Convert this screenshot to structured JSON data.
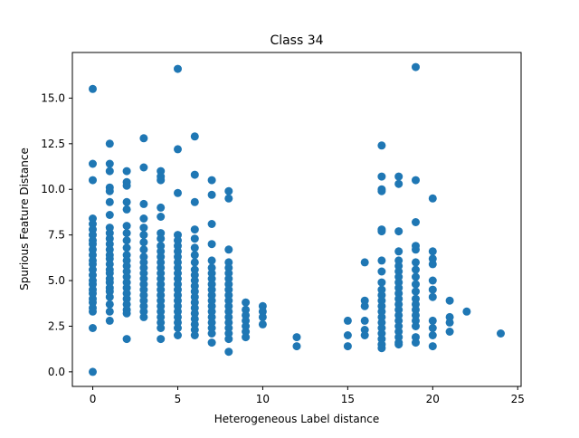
{
  "chart_data": {
    "type": "scatter",
    "title": "Class 34",
    "xlabel": "Heterogeneous Label distance",
    "ylabel": "Spurious Feature Distance",
    "xlim": [
      -1.2,
      25.2
    ],
    "ylim": [
      -0.8,
      17.5
    ],
    "xticks": [
      0,
      5,
      10,
      15,
      20,
      25
    ],
    "xtick_labels": [
      "0",
      "5",
      "10",
      "15",
      "20",
      "25"
    ],
    "yticks": [
      0,
      2.5,
      5,
      7.5,
      10,
      12.5,
      15
    ],
    "ytick_labels": [
      "0.0",
      "2.5",
      "5.0",
      "7.5",
      "10.0",
      "12.5",
      "15.0"
    ],
    "grid": false,
    "marker_color": "#1f77b4",
    "series": [
      {
        "points": [
          [
            0,
            15.5
          ],
          [
            0,
            11.4
          ],
          [
            0,
            10.5
          ],
          [
            0,
            8.4
          ],
          [
            0,
            8.1
          ],
          [
            0,
            7.8
          ],
          [
            0,
            7.5
          ],
          [
            0,
            7.2
          ],
          [
            0,
            7.0
          ],
          [
            0,
            6.7
          ],
          [
            0,
            6.4
          ],
          [
            0,
            6.1
          ],
          [
            0,
            5.9
          ],
          [
            0,
            5.6
          ],
          [
            0,
            5.3
          ],
          [
            0,
            5.0
          ],
          [
            0,
            4.8
          ],
          [
            0,
            4.5
          ],
          [
            0,
            4.3
          ],
          [
            0,
            4.0
          ],
          [
            0,
            3.8
          ],
          [
            0,
            3.5
          ],
          [
            0,
            3.3
          ],
          [
            0,
            2.4
          ],
          [
            0,
            0.0
          ],
          [
            1,
            12.5
          ],
          [
            1,
            11.4
          ],
          [
            1,
            11.0
          ],
          [
            1,
            10.1
          ],
          [
            1,
            9.9
          ],
          [
            1,
            9.3
          ],
          [
            1,
            8.6
          ],
          [
            1,
            7.9
          ],
          [
            1,
            7.6
          ],
          [
            1,
            7.3
          ],
          [
            1,
            7.0
          ],
          [
            1,
            6.7
          ],
          [
            1,
            6.4
          ],
          [
            1,
            6.2
          ],
          [
            1,
            5.9
          ],
          [
            1,
            5.6
          ],
          [
            1,
            5.4
          ],
          [
            1,
            5.1
          ],
          [
            1,
            4.9
          ],
          [
            1,
            4.6
          ],
          [
            1,
            4.4
          ],
          [
            1,
            4.1
          ],
          [
            1,
            3.7
          ],
          [
            1,
            3.3
          ],
          [
            1,
            2.8
          ],
          [
            2,
            11.0
          ],
          [
            2,
            10.4
          ],
          [
            2,
            10.2
          ],
          [
            2,
            9.3
          ],
          [
            2,
            8.9
          ],
          [
            2,
            8.0
          ],
          [
            2,
            7.6
          ],
          [
            2,
            7.2
          ],
          [
            2,
            6.8
          ],
          [
            2,
            6.4
          ],
          [
            2,
            6.1
          ],
          [
            2,
            5.8
          ],
          [
            2,
            5.5
          ],
          [
            2,
            5.2
          ],
          [
            2,
            4.9
          ],
          [
            2,
            4.6
          ],
          [
            2,
            4.3
          ],
          [
            2,
            4.0
          ],
          [
            2,
            3.7
          ],
          [
            2,
            3.4
          ],
          [
            2,
            3.2
          ],
          [
            2,
            1.8
          ],
          [
            3,
            12.8
          ],
          [
            3,
            11.2
          ],
          [
            3,
            9.2
          ],
          [
            3,
            8.4
          ],
          [
            3,
            7.9
          ],
          [
            3,
            7.5
          ],
          [
            3,
            7.1
          ],
          [
            3,
            6.7
          ],
          [
            3,
            6.3
          ],
          [
            3,
            6.0
          ],
          [
            3,
            5.7
          ],
          [
            3,
            5.4
          ],
          [
            3,
            5.1
          ],
          [
            3,
            4.8
          ],
          [
            3,
            4.5
          ],
          [
            3,
            4.2
          ],
          [
            3,
            3.9
          ],
          [
            3,
            3.6
          ],
          [
            3,
            3.3
          ],
          [
            3,
            3.0
          ],
          [
            4,
            11.0
          ],
          [
            4,
            10.7
          ],
          [
            4,
            10.5
          ],
          [
            4,
            9.0
          ],
          [
            4,
            8.5
          ],
          [
            4,
            7.6
          ],
          [
            4,
            7.3
          ],
          [
            4,
            6.9
          ],
          [
            4,
            6.6
          ],
          [
            4,
            6.3
          ],
          [
            4,
            6.0
          ],
          [
            4,
            5.7
          ],
          [
            4,
            5.4
          ],
          [
            4,
            5.1
          ],
          [
            4,
            4.8
          ],
          [
            4,
            4.5
          ],
          [
            4,
            4.2
          ],
          [
            4,
            3.9
          ],
          [
            4,
            3.6
          ],
          [
            4,
            3.3
          ],
          [
            4,
            3.0
          ],
          [
            4,
            2.7
          ],
          [
            4,
            2.4
          ],
          [
            4,
            1.8
          ],
          [
            5,
            16.6
          ],
          [
            5,
            12.2
          ],
          [
            5,
            9.8
          ],
          [
            5,
            7.5
          ],
          [
            5,
            7.2
          ],
          [
            5,
            6.9
          ],
          [
            5,
            6.6
          ],
          [
            5,
            6.3
          ],
          [
            5,
            6.0
          ],
          [
            5,
            5.7
          ],
          [
            5,
            5.4
          ],
          [
            5,
            5.1
          ],
          [
            5,
            4.8
          ],
          [
            5,
            4.5
          ],
          [
            5,
            4.2
          ],
          [
            5,
            3.9
          ],
          [
            5,
            3.6
          ],
          [
            5,
            3.3
          ],
          [
            5,
            3.0
          ],
          [
            5,
            2.7
          ],
          [
            5,
            2.4
          ],
          [
            5,
            2.0
          ],
          [
            6,
            12.9
          ],
          [
            6,
            10.8
          ],
          [
            6,
            9.3
          ],
          [
            6,
            7.8
          ],
          [
            6,
            7.3
          ],
          [
            6,
            6.8
          ],
          [
            6,
            6.4
          ],
          [
            6,
            6.0
          ],
          [
            6,
            5.6
          ],
          [
            6,
            5.3
          ],
          [
            6,
            5.0
          ],
          [
            6,
            4.7
          ],
          [
            6,
            4.4
          ],
          [
            6,
            4.1
          ],
          [
            6,
            3.8
          ],
          [
            6,
            3.5
          ],
          [
            6,
            3.2
          ],
          [
            6,
            2.9
          ],
          [
            6,
            2.6
          ],
          [
            6,
            2.3
          ],
          [
            6,
            2.0
          ],
          [
            7,
            10.5
          ],
          [
            7,
            9.7
          ],
          [
            7,
            8.1
          ],
          [
            7,
            7.0
          ],
          [
            7,
            6.1
          ],
          [
            7,
            5.7
          ],
          [
            7,
            5.4
          ],
          [
            7,
            5.1
          ],
          [
            7,
            4.8
          ],
          [
            7,
            4.5
          ],
          [
            7,
            4.2
          ],
          [
            7,
            3.9
          ],
          [
            7,
            3.6
          ],
          [
            7,
            3.3
          ],
          [
            7,
            3.0
          ],
          [
            7,
            2.7
          ],
          [
            7,
            2.4
          ],
          [
            7,
            2.1
          ],
          [
            7,
            1.6
          ],
          [
            8,
            9.9
          ],
          [
            8,
            9.5
          ],
          [
            8,
            6.7
          ],
          [
            8,
            6.0
          ],
          [
            8,
            5.7
          ],
          [
            8,
            5.4
          ],
          [
            8,
            5.1
          ],
          [
            8,
            4.8
          ],
          [
            8,
            4.5
          ],
          [
            8,
            4.2
          ],
          [
            8,
            3.9
          ],
          [
            8,
            3.6
          ],
          [
            8,
            3.3
          ],
          [
            8,
            3.0
          ],
          [
            8,
            2.7
          ],
          [
            8,
            2.4
          ],
          [
            8,
            2.1
          ],
          [
            8,
            1.8
          ],
          [
            8,
            1.1
          ],
          [
            9,
            3.8
          ],
          [
            9,
            3.4
          ],
          [
            9,
            3.1
          ],
          [
            9,
            2.8
          ],
          [
            9,
            2.5
          ],
          [
            9,
            2.2
          ],
          [
            9,
            1.9
          ],
          [
            10,
            3.6
          ],
          [
            10,
            3.3
          ],
          [
            10,
            3.0
          ],
          [
            10,
            2.6
          ],
          [
            12,
            1.9
          ],
          [
            12,
            1.4
          ],
          [
            15,
            2.8
          ],
          [
            15,
            2.0
          ],
          [
            15,
            1.4
          ],
          [
            16,
            6.0
          ],
          [
            16,
            3.9
          ],
          [
            16,
            3.6
          ],
          [
            16,
            2.8
          ],
          [
            16,
            2.3
          ],
          [
            16,
            2.0
          ],
          [
            17,
            12.4
          ],
          [
            17,
            10.7
          ],
          [
            17,
            10.0
          ],
          [
            17,
            9.9
          ],
          [
            17,
            7.8
          ],
          [
            17,
            7.7
          ],
          [
            17,
            6.1
          ],
          [
            17,
            5.5
          ],
          [
            17,
            4.9
          ],
          [
            17,
            4.5
          ],
          [
            17,
            4.2
          ],
          [
            17,
            3.9
          ],
          [
            17,
            3.6
          ],
          [
            17,
            3.3
          ],
          [
            17,
            3.0
          ],
          [
            17,
            2.7
          ],
          [
            17,
            2.4
          ],
          [
            17,
            2.1
          ],
          [
            17,
            1.8
          ],
          [
            17,
            1.5
          ],
          [
            17,
            1.3
          ],
          [
            18,
            10.7
          ],
          [
            18,
            10.3
          ],
          [
            18,
            7.7
          ],
          [
            18,
            6.6
          ],
          [
            18,
            6.1
          ],
          [
            18,
            5.8
          ],
          [
            18,
            5.5
          ],
          [
            18,
            5.2
          ],
          [
            18,
            4.9
          ],
          [
            18,
            4.6
          ],
          [
            18,
            4.3
          ],
          [
            18,
            4.0
          ],
          [
            18,
            3.7
          ],
          [
            18,
            3.4
          ],
          [
            18,
            3.1
          ],
          [
            18,
            2.8
          ],
          [
            18,
            2.5
          ],
          [
            18,
            2.2
          ],
          [
            18,
            1.9
          ],
          [
            18,
            1.6
          ],
          [
            18,
            1.5
          ],
          [
            19,
            16.7
          ],
          [
            19,
            10.5
          ],
          [
            19,
            8.2
          ],
          [
            19,
            6.9
          ],
          [
            19,
            6.7
          ],
          [
            19,
            6.0
          ],
          [
            19,
            5.6
          ],
          [
            19,
            5.2
          ],
          [
            19,
            4.8
          ],
          [
            19,
            4.4
          ],
          [
            19,
            4.0
          ],
          [
            19,
            3.7
          ],
          [
            19,
            3.4
          ],
          [
            19,
            3.1
          ],
          [
            19,
            2.8
          ],
          [
            19,
            2.5
          ],
          [
            19,
            1.9
          ],
          [
            19,
            1.6
          ],
          [
            20,
            9.5
          ],
          [
            20,
            6.6
          ],
          [
            20,
            6.2
          ],
          [
            20,
            5.9
          ],
          [
            20,
            5.0
          ],
          [
            20,
            4.5
          ],
          [
            20,
            4.1
          ],
          [
            20,
            2.8
          ],
          [
            20,
            2.4
          ],
          [
            20,
            2.0
          ],
          [
            20,
            1.4
          ],
          [
            21,
            3.9
          ],
          [
            21,
            3.0
          ],
          [
            21,
            2.7
          ],
          [
            21,
            2.2
          ],
          [
            22,
            3.3
          ],
          [
            24,
            2.1
          ]
        ]
      }
    ]
  }
}
